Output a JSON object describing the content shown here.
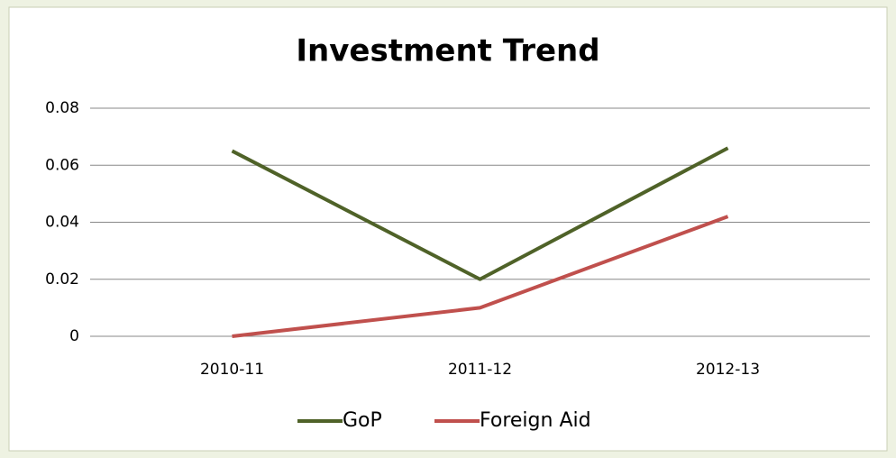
{
  "chart_data": {
    "type": "line",
    "title": "Investment Trend",
    "categories": [
      "2010-11",
      "2011-12",
      "2012-13"
    ],
    "series": [
      {
        "name": "GoP",
        "color": "#4f6228",
        "values": [
          0.065,
          0.02,
          0.066
        ]
      },
      {
        "name": "Foreign Aid",
        "color": "#c0504d",
        "values": [
          0,
          0.01,
          0.042
        ]
      }
    ],
    "ylim": [
      0,
      0.08
    ],
    "yticks": [
      0,
      0.02,
      0.04,
      0.06,
      0.08
    ],
    "grid": true,
    "legend": "bottom"
  }
}
